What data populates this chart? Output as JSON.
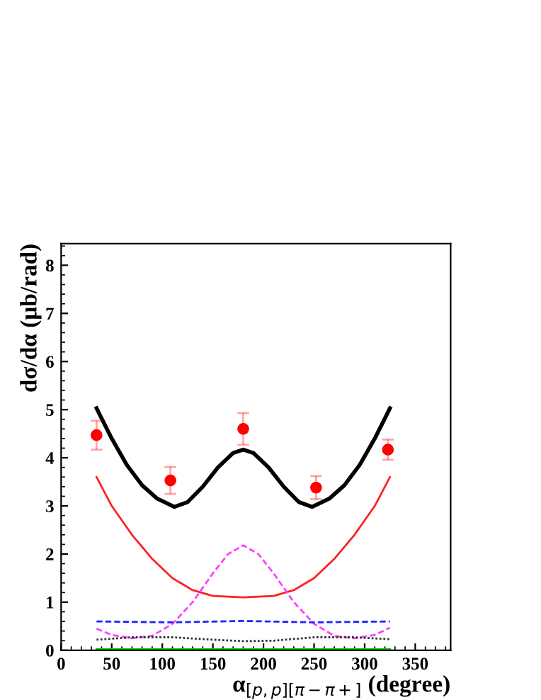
{
  "chart_data": {
    "type": "line",
    "xlabel": "α$_{[p,p][π−π+]}$ (degree)",
    "ylabel": "dσ/dα (μb/rad)",
    "xlim": [
      0,
      385
    ],
    "ylim": [
      0,
      8.45
    ],
    "xticks": [
      0,
      50,
      100,
      150,
      200,
      250,
      300,
      350
    ],
    "yticks": [
      0,
      1,
      2,
      3,
      4,
      5,
      6,
      7,
      8
    ],
    "grid": false,
    "legend": false,
    "series": [
      {
        "color": "#000000",
        "line_style": "solid",
        "x": [
          35,
          50,
          65,
          80,
          95,
          112,
          125,
          140,
          155,
          170,
          180,
          190,
          205,
          220,
          235,
          248,
          265,
          280,
          295,
          310,
          325
        ],
        "values": [
          5.03,
          4.4,
          3.85,
          3.43,
          3.15,
          2.98,
          3.08,
          3.4,
          3.8,
          4.1,
          4.17,
          4.1,
          3.8,
          3.4,
          3.08,
          2.98,
          3.15,
          3.43,
          3.85,
          4.4,
          5.03
        ]
      },
      {
        "color": "#ff2020",
        "line_style": "solid",
        "x": [
          35,
          50,
          70,
          90,
          110,
          130,
          150,
          180,
          210,
          230,
          250,
          270,
          290,
          310,
          325
        ],
        "values": [
          3.6,
          3.0,
          2.4,
          1.9,
          1.5,
          1.25,
          1.13,
          1.1,
          1.13,
          1.25,
          1.5,
          1.9,
          2.4,
          3.0,
          3.6
        ]
      },
      {
        "color": "#ff40ff",
        "line_style": "dashed",
        "x": [
          35,
          50,
          70,
          90,
          110,
          130,
          150,
          165,
          180,
          195,
          210,
          230,
          250,
          270,
          290,
          310,
          325
        ],
        "values": [
          0.45,
          0.32,
          0.25,
          0.3,
          0.55,
          1.0,
          1.6,
          2.0,
          2.18,
          2.0,
          1.6,
          1.0,
          0.55,
          0.3,
          0.25,
          0.32,
          0.47
        ]
      },
      {
        "color": "#2020ff",
        "line_style": "dashed",
        "x": [
          35,
          110,
          180,
          250,
          325
        ],
        "values": [
          0.6,
          0.58,
          0.61,
          0.58,
          0.6
        ]
      },
      {
        "color": "#303030",
        "line_style": "dotted",
        "x": [
          35,
          70,
          110,
          150,
          180,
          210,
          250,
          290,
          325
        ],
        "values": [
          0.22,
          0.27,
          0.27,
          0.22,
          0.19,
          0.2,
          0.27,
          0.27,
          0.23
        ]
      },
      {
        "color": "#00cc00",
        "line_style": "solid",
        "x": [
          35,
          325
        ],
        "values": [
          0.02,
          0.02
        ]
      },
      {
        "type": "scatter",
        "color": "#ff0000",
        "marker": "circle",
        "x": [
          35,
          108,
          180,
          252,
          323
        ],
        "values": [
          4.47,
          3.53,
          4.6,
          3.38,
          4.17
        ],
        "errors": [
          0.3,
          0.28,
          0.33,
          0.24,
          0.21
        ]
      }
    ]
  }
}
